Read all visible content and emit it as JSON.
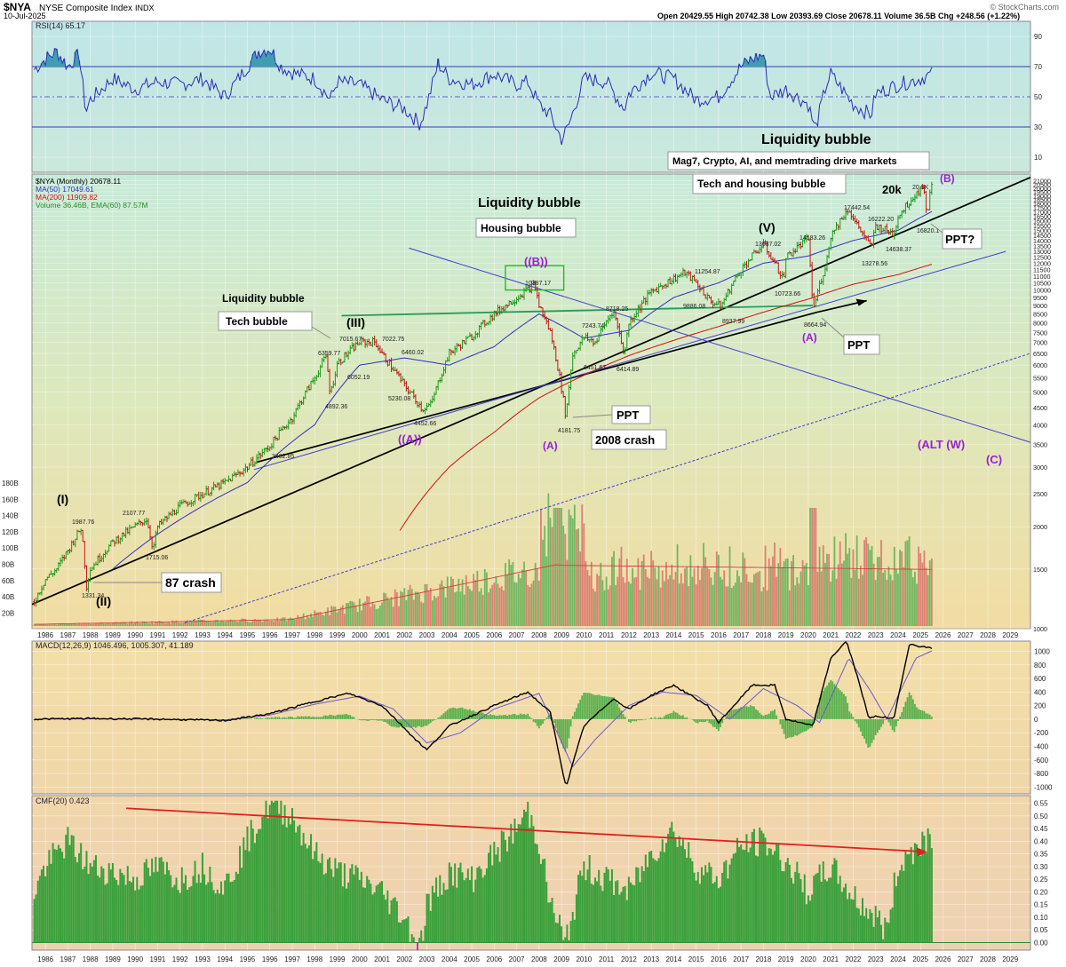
{
  "header": {
    "symbol": "$NYA",
    "name": "NYSE Composite Index",
    "exchange": "INDX",
    "date": "10-Jul-2025",
    "ohlc": "Open 20429.55  High 20742.38  Low 20393.69  Close 20678.11  Volume 36.5B  Chg +248.56 (+1.22%)",
    "watermark": "© StockCharts.com",
    "colors": {
      "bull": "#1a9a1a",
      "bear": "#c01818"
    }
  },
  "chart_data": [
    {
      "type": "line",
      "panel": "rsi",
      "title": "RSI(14) 65.17",
      "yticks": [
        90,
        70,
        50,
        30,
        10
      ],
      "ylim": [
        0,
        100
      ],
      "overbought": 70,
      "oversold": 30,
      "x": [
        1985.5,
        1986,
        1986.5,
        1987,
        1987.5,
        1987.8,
        1988,
        1989,
        1990,
        1991,
        1992,
        1993,
        1994,
        1995,
        1995.5,
        1996,
        1996.5,
        1997,
        1998,
        1998.7,
        1999,
        2000,
        2001,
        2002,
        2002.7,
        2003,
        2003.5,
        2004,
        2005,
        2006,
        2007,
        2007.5,
        2008,
        2008.5,
        2009,
        2009.3,
        2010,
        2011,
        2011.8,
        2012,
        2013,
        2014,
        2015,
        2016,
        2017,
        2017.5,
        2018,
        2018.3,
        2019,
        2020,
        2020.3,
        2020.8,
        2021,
        2022,
        2022.8,
        2023,
        2024,
        2024.5,
        2025,
        2025.5
      ],
      "values": [
        68,
        75,
        80,
        70,
        78,
        40,
        48,
        62,
        55,
        60,
        58,
        62,
        50,
        70,
        80,
        82,
        70,
        66,
        62,
        48,
        60,
        58,
        48,
        42,
        32,
        45,
        72,
        62,
        58,
        65,
        58,
        60,
        45,
        38,
        22,
        30,
        62,
        60,
        42,
        52,
        66,
        62,
        48,
        50,
        70,
        75,
        78,
        50,
        55,
        45,
        28,
        58,
        65,
        45,
        38,
        52,
        58,
        60,
        62,
        65
      ]
    },
    {
      "type": "line",
      "panel": "price",
      "title": "NYSE Composite Index (Monthly)",
      "legend": [
        {
          "name": "$NYA (Monthly) 20678.11",
          "color": "#000000"
        },
        {
          "name": "MA(50) 17049.61",
          "color": "#3030c0"
        },
        {
          "name": "MA(200) 11909.82",
          "color": "#d01010"
        },
        {
          "name": "Volume 36.46B, EMA(60) 87.57M",
          "color": "#2a8a2a"
        }
      ],
      "scale": "log",
      "ylim": [
        1000,
        22000
      ],
      "yticks": [
        1000,
        1500,
        2000,
        2500,
        3000,
        3500,
        4000,
        4500,
        5000,
        5500,
        6000,
        6500,
        7000,
        7500,
        8000,
        8500,
        9000,
        9500,
        10000,
        10500,
        11000,
        11500,
        12000,
        12500,
        13000,
        13500,
        14000,
        14500,
        15000,
        15500,
        16000,
        16500,
        17000,
        17500,
        18000,
        18500,
        19000,
        19500,
        20000,
        20500,
        21000
      ],
      "series": [
        {
          "name": "NYA",
          "x": [
            1985.5,
            1986,
            1986.5,
            1987,
            1987.6,
            1987.83,
            1988,
            1989,
            1990.5,
            1990.8,
            1991,
            1992,
            1993,
            1994,
            1995,
            1996,
            1997,
            1998,
            1998.5,
            1998.7,
            1999,
            2000,
            2000.7,
            2001,
            2002,
            2002.8,
            2003.2,
            2004,
            2005,
            2006,
            2007,
            2007.8,
            2008,
            2008.5,
            2009.2,
            2009.5,
            2010,
            2010.5,
            2011.3,
            2011.8,
            2012,
            2013,
            2014,
            2014.5,
            2015,
            2015.6,
            2016.1,
            2017,
            2018,
            2018.9,
            2019,
            2020,
            2020.2,
            2020.8,
            2021,
            2021.8,
            2022,
            2022.8,
            2023,
            2023.8,
            2024,
            2025.1,
            2025.3,
            2025.5
          ],
          "values": [
            1200,
            1400,
            1500,
            1700,
            1987.76,
            1331.34,
            1500,
            1800,
            2107.77,
            1715.06,
            2000,
            2300,
            2500,
            2700,
            3000,
            3462.85,
            4200,
            5500,
            6359.77,
            4892.36,
            6052.19,
            7015.67,
            7022.75,
            6460.02,
            5230.08,
            4452.66,
            4600,
            6500,
            7300,
            8500,
            9500,
            10387.17,
            9000,
            7500,
            4181.75,
            6451.67,
            7243.74,
            7000,
            8718.25,
            6414.89,
            8000,
            9886.08,
            10800,
            11254.87,
            10500,
            9300,
            8937.99,
            11500,
            13637.02,
            10723.66,
            12500,
            14183.26,
            8664.94,
            12000,
            14500,
            17442.54,
            16222.2,
            13278.56,
            15500,
            14638.37,
            16500,
            20300,
            16820.1,
            20678.11
          ]
        },
        {
          "name": "MA(50)",
          "x": [
            1989,
            1992,
            1995,
            1998,
            2000,
            2002,
            2004,
            2006,
            2008,
            2010,
            2012,
            2014,
            2016,
            2018,
            2020,
            2022,
            2024,
            2025.5
          ],
          "values": [
            1500,
            2100,
            2700,
            4000,
            6000,
            6300,
            6000,
            6800,
            8500,
            7200,
            7600,
            9500,
            10500,
            12000,
            12600,
            14000,
            15000,
            17049.61
          ]
        },
        {
          "name": "MA(200)",
          "x": [
            2001.8,
            2004,
            2006,
            2008,
            2010,
            2012,
            2014,
            2016,
            2018,
            2020,
            2022,
            2024,
            2025.5
          ],
          "values": [
            1950,
            3000,
            3800,
            4800,
            5600,
            6400,
            7100,
            7800,
            8600,
            9400,
            10400,
            11100,
            11909.82
          ]
        }
      ],
      "volume_label_ticks": [
        "180B",
        "160B",
        "140B",
        "120B",
        "100B",
        "80B",
        "60B",
        "40B",
        "20B"
      ],
      "annotations": [
        {
          "text": "(I)",
          "color": "#000000"
        },
        {
          "text": "(II)",
          "color": "#000000"
        },
        {
          "text": "(III)",
          "color": "#000000"
        },
        {
          "text": "(V)",
          "color": "#000000"
        },
        {
          "text": "((A))",
          "color": "#9b1fd6"
        },
        {
          "text": "((B))",
          "color": "#9b1fd6"
        },
        {
          "text": "(A)",
          "color": "#9b1fd6"
        },
        {
          "text": "(B)",
          "color": "#9b1fd6"
        },
        {
          "text": "(ALT (W)",
          "color": "#9b1fd6"
        },
        {
          "text": "(C)",
          "color": "#9b1fd6"
        },
        {
          "text": "(A)",
          "color": "#9b1fd6"
        },
        {
          "text": "20k",
          "color": "#000000"
        }
      ],
      "price_labels": [
        "1987.76",
        "1331.34",
        "2107.77",
        "1715.06",
        "3462.85",
        "6359.77",
        "4892.36",
        "6052.19",
        "7015.67",
        "7022.75",
        "6460.02",
        "5230.08",
        "4452.66",
        "10387.17",
        "7243.74",
        "8718.25",
        "6451.67",
        "6414.89",
        "4181.75",
        "9886.08",
        "11254.87",
        "8937.99",
        "13637.02",
        "10723.66",
        "14183.26",
        "8664.94",
        "17442.54",
        "16222.20",
        "13278.56",
        "14638.37",
        "20.3K",
        "16820.1"
      ],
      "text_notes": [
        "Liquidity bubble",
        "Liquidity bubble",
        "Liquidity bubble",
        "Tech bubble",
        "Housing bubble",
        "Tech and housing bubble",
        "Mag7, Crypto, AI, and memtrading drive markets",
        "87 crash",
        "2008 crash",
        "PPT",
        "PPT",
        "PPT?"
      ]
    },
    {
      "type": "line",
      "panel": "macd",
      "title": "MACD(12,26,9) 1046.496, 1005.307, 41.189",
      "yticks": [
        1000,
        800,
        600,
        400,
        200,
        0,
        -200,
        -400,
        -600,
        -800,
        -1000
      ],
      "ylim": [
        -1100,
        1150
      ],
      "series": [
        {
          "name": "MACD",
          "x": [
            1985.5,
            1988,
            1991,
            1994,
            1996,
            1998,
            1999.5,
            2001,
            2002.5,
            2003,
            2004,
            2006,
            2007.5,
            2008.5,
            2009.2,
            2010,
            2011.3,
            2012,
            2013,
            2014,
            2015.5,
            2016,
            2017.5,
            2018.5,
            2019,
            2020.2,
            2021,
            2021.7,
            2022.3,
            2022.7,
            2023,
            2023.8,
            2024.5,
            2025.5
          ],
          "values": [
            0,
            10,
            0,
            -20,
            80,
            260,
            380,
            200,
            -300,
            -450,
            -100,
            200,
            400,
            100,
            -1000,
            -100,
            300,
            150,
            350,
            500,
            200,
            -50,
            500,
            500,
            0,
            -100,
            900,
            1150,
            500,
            0,
            50,
            0,
            1100,
            1046.5
          ]
        },
        {
          "name": "Signal",
          "x": [
            1985.5,
            1988,
            1991,
            1994,
            1996,
            1998,
            2000,
            2001.5,
            2003,
            2004.5,
            2006,
            2008,
            2009.5,
            2010.5,
            2012,
            2013.5,
            2015,
            2016.5,
            2018,
            2019.5,
            2020.5,
            2021.8,
            2022.8,
            2023.5,
            2024.8,
            2025.5
          ],
          "values": [
            0,
            5,
            0,
            -10,
            60,
            220,
            340,
            150,
            -350,
            -200,
            150,
            380,
            -700,
            -300,
            200,
            400,
            350,
            0,
            450,
            200,
            -50,
            900,
            400,
            0,
            900,
            1005.3
          ]
        }
      ]
    },
    {
      "type": "bar",
      "panel": "cmf",
      "title": "CMF(20) 0.423",
      "yticks": [
        0.55,
        0.5,
        0.45,
        0.4,
        0.35,
        0.3,
        0.25,
        0.2,
        0.15,
        0.1,
        0.05,
        0.0
      ],
      "ylim": [
        -0.03,
        0.58
      ],
      "x": [
        1985.5,
        1986,
        1987,
        1988,
        1989,
        1990,
        1991,
        1992,
        1993,
        1994,
        1995,
        1996,
        1997,
        1998,
        1999,
        2000,
        2001,
        2002,
        2002.7,
        2003,
        2004,
        2005,
        2006,
        2007,
        2007.5,
        2008,
        2008.5,
        2009,
        2009.1,
        2010,
        2011,
        2012,
        2013,
        2014,
        2015,
        2016,
        2017,
        2018,
        2019,
        2020,
        2021,
        2022,
        2023,
        2023.5,
        2024,
        2025,
        2025.5
      ],
      "values": [
        0.2,
        0.3,
        0.4,
        0.3,
        0.28,
        0.25,
        0.3,
        0.25,
        0.3,
        0.22,
        0.4,
        0.55,
        0.5,
        0.35,
        0.28,
        0.25,
        0.2,
        0.1,
        -0.02,
        0.15,
        0.28,
        0.25,
        0.35,
        0.45,
        0.52,
        0.4,
        0.15,
        0.05,
        -0.03,
        0.3,
        0.25,
        0.2,
        0.35,
        0.45,
        0.3,
        0.25,
        0.38,
        0.4,
        0.32,
        0.2,
        0.3,
        0.18,
        0.1,
        0.05,
        0.3,
        0.4,
        0.423
      ],
      "trendline_note": "declining peaks"
    }
  ],
  "xaxis": {
    "years": [
      "1986",
      "1987",
      "1988",
      "1989",
      "1990",
      "1991",
      "1992",
      "1993",
      "1994",
      "1995",
      "1996",
      "1997",
      "1998",
      "1999",
      "2000",
      "2001",
      "2002",
      "2003",
      "2004",
      "2005",
      "2006",
      "2007",
      "2008",
      "2009",
      "2010",
      "2011",
      "2012",
      "2013",
      "2014",
      "2015",
      "2016",
      "2017",
      "2018",
      "2019",
      "2020",
      "2021",
      "2022",
      "2023",
      "2024",
      "2025",
      "2026",
      "2027",
      "2028",
      "2029"
    ]
  }
}
